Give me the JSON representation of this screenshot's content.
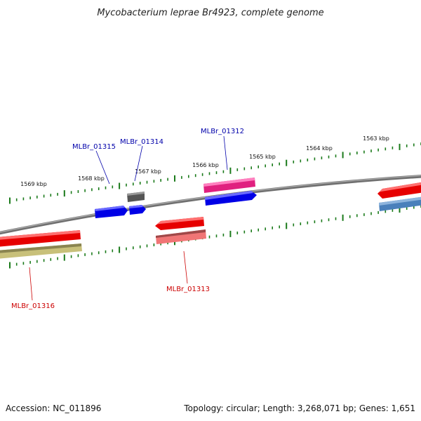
{
  "title": "Mycobacterium leprae Br4923, complete genome",
  "footer": {
    "accession": "Accession: NC_011896",
    "summary": "Topology: circular; Length: 3,268,071 bp; Genes: 1,651"
  },
  "colors": {
    "backbone": "#808080",
    "tick": "#1a7a1a",
    "label_forward": "#0000aa",
    "label_reverse": "#cc0000"
  },
  "ruler": {
    "unit": "kbp",
    "ticks": [
      {
        "label": "1569 kbp"
      },
      {
        "label": "1568 kbp"
      },
      {
        "label": "1567 kbp"
      },
      {
        "label": "1566 kbp"
      },
      {
        "label": "1565 kbp"
      },
      {
        "label": "1564 kbp"
      },
      {
        "label": "1563 kbp"
      }
    ]
  },
  "genes": [
    {
      "id": "MLBr_01315",
      "strand": "forward",
      "color": "#0000ee"
    },
    {
      "id": "MLBr_01314",
      "strand": "forward",
      "color": "#0000ee"
    },
    {
      "id": "MLBr_01312",
      "strand": "forward",
      "color": "#0000ee"
    },
    {
      "id": "MLBr_01313",
      "strand": "reverse",
      "color": "#ee0000"
    },
    {
      "id": "MLBr_01316",
      "strand": "reverse",
      "color": "#ee0000"
    }
  ],
  "feature_bars": [
    {
      "name": "gray-feature",
      "color": "#606060"
    },
    {
      "name": "pink-feature",
      "color": "#e8338f"
    },
    {
      "name": "red-forward-right",
      "color": "#ee0000"
    },
    {
      "name": "steelblue-feature",
      "color": "#4a7fb8"
    },
    {
      "name": "salmon-feature",
      "color": "#f08080"
    },
    {
      "name": "khaki-feature",
      "color": "#bdb76b"
    }
  ]
}
